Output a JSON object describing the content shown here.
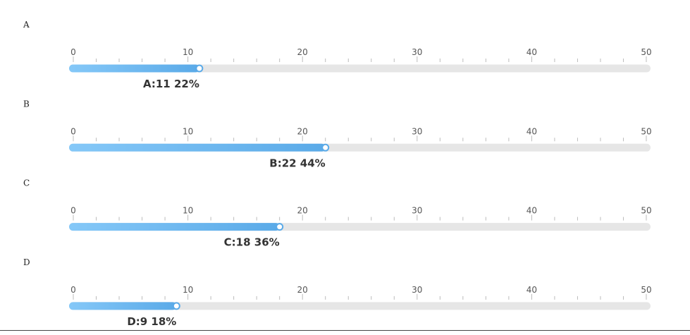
{
  "chart_data": {
    "type": "bar",
    "orientation": "horizontal-progress",
    "xlim": [
      0,
      50
    ],
    "ticks": [
      "0",
      "10",
      "20",
      "30",
      "40",
      "50"
    ],
    "rows": [
      {
        "name": "A",
        "value": 11,
        "percent": 22,
        "label": "A:11 22%"
      },
      {
        "name": "B",
        "value": 22,
        "percent": 44,
        "label": "B:22 44%"
      },
      {
        "name": "C",
        "value": 18,
        "percent": 36,
        "label": "C:18 36%"
      },
      {
        "name": "D",
        "value": 9,
        "percent": 18,
        "label": "D:9 18%"
      }
    ],
    "colors": {
      "fill_start": "#85c8f8",
      "fill_end": "#5aaae8",
      "track": "#e6e6e6",
      "tick": "#bbbbbb"
    }
  }
}
